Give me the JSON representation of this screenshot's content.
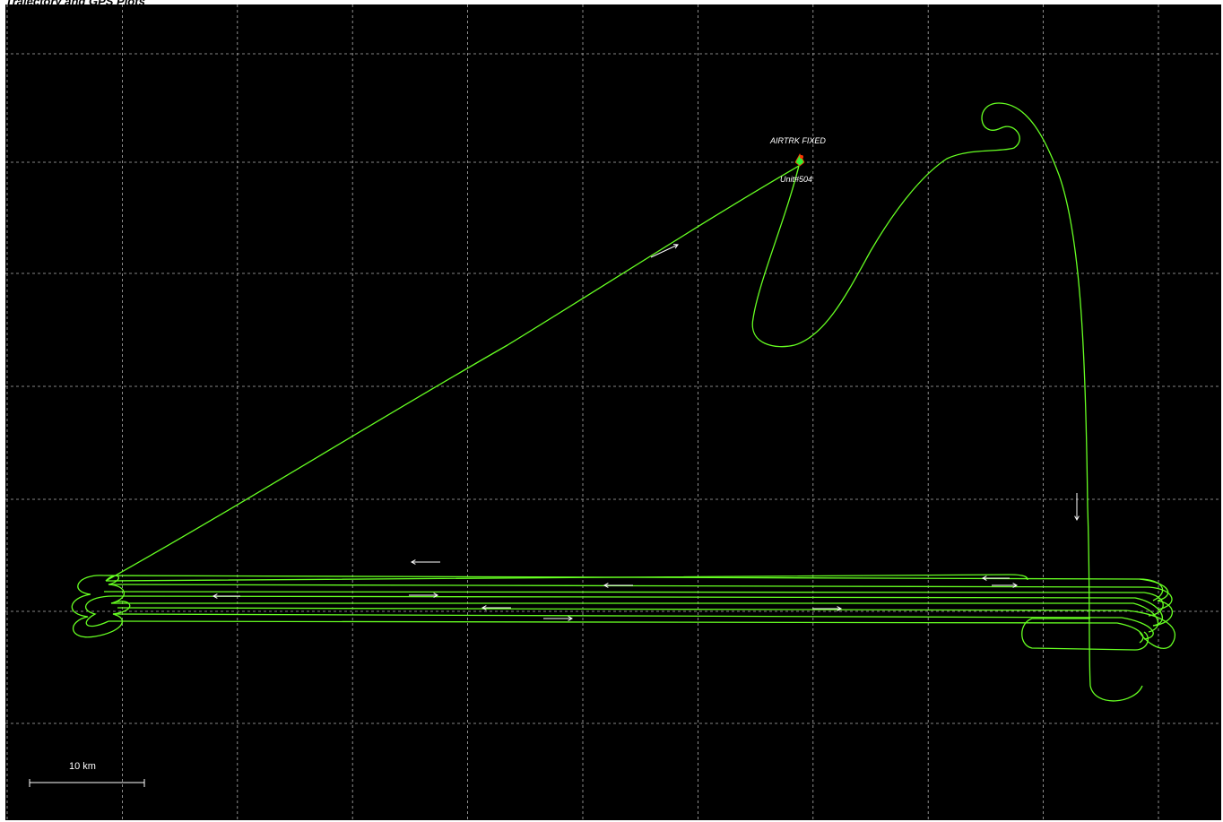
{
  "window": {
    "title": "Trajectory and GPS Plots"
  },
  "map": {
    "background_color": "#000000",
    "grid_color": "#b0b0b0",
    "track_color": "#66ff22",
    "arrow_color": "#ffffff",
    "grid": "dashed",
    "aircraft_label_top": "AIRTRK FIXED",
    "aircraft_label_bottom": "Unit#504",
    "aircraft_marker_color": "#33ee33",
    "aircraft_marker_alt_color": "#ff3300"
  },
  "scale_bar": {
    "label": "10 km"
  }
}
